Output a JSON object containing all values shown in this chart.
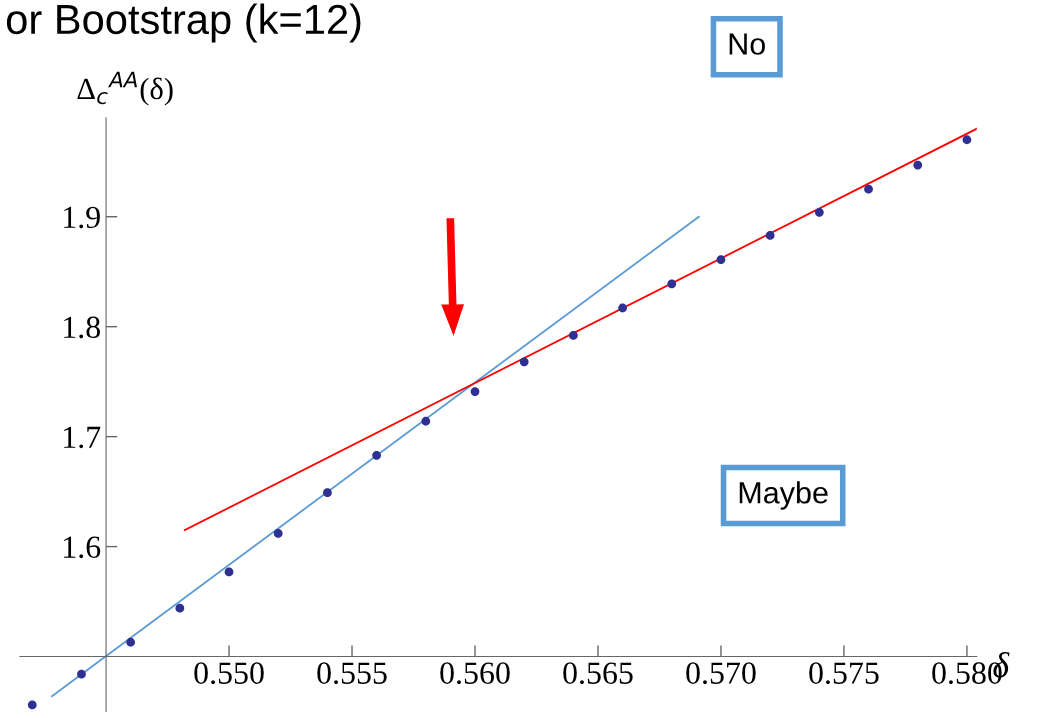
{
  "chart_data": {
    "type": "scatter",
    "title": "or Bootstrap (k=12)",
    "xlabel": "δ",
    "ylabel": "Δ$_{c}$$^{AA}$(δ)",
    "x": [
      0.542,
      0.544,
      0.546,
      0.548,
      0.55,
      0.552,
      0.554,
      0.556,
      0.558,
      0.56,
      0.562,
      0.564,
      0.566,
      0.568,
      0.57,
      0.572,
      0.574,
      0.576,
      0.578,
      0.58
    ],
    "series": [
      {
        "color": "#2e3192",
        "marker": "circle",
        "values": [
          1.456,
          1.484,
          1.513,
          1.544,
          1.577,
          1.612,
          1.649,
          1.683,
          1.714,
          1.741,
          1.768,
          1.792,
          1.817,
          1.839,
          1.861,
          1.883,
          1.904,
          1.925,
          1.947,
          1.97
        ]
      },
      {
        "type": "line",
        "color": "#5b9bd5",
        "x": [
          0.5428,
          0.5691
        ],
        "values": [
          1.464,
          1.9
        ]
      },
      {
        "type": "line",
        "color": "#ff0000",
        "x": [
          0.5482,
          0.5804
        ],
        "values": [
          1.615,
          1.98
        ]
      }
    ],
    "annotations": [
      "No",
      "Maybe"
    ],
    "xlim": [
      0.5415,
      0.5804
    ],
    "ylim": [
      1.45,
      1.99
    ],
    "xticks": [
      {
        "value": 0.55,
        "label": "0.550"
      },
      {
        "value": 0.555,
        "label": "0.555"
      },
      {
        "value": 0.56,
        "label": "0.560"
      },
      {
        "value": 0.565,
        "label": "0.565"
      },
      {
        "value": 0.57,
        "label": "0.570"
      },
      {
        "value": 0.575,
        "label": "0.575"
      },
      {
        "value": 0.58,
        "label": "0.580"
      }
    ],
    "yticks": [
      1.6,
      1.7,
      1.8,
      1.9
    ],
    "grid": false,
    "legend": false
  }
}
